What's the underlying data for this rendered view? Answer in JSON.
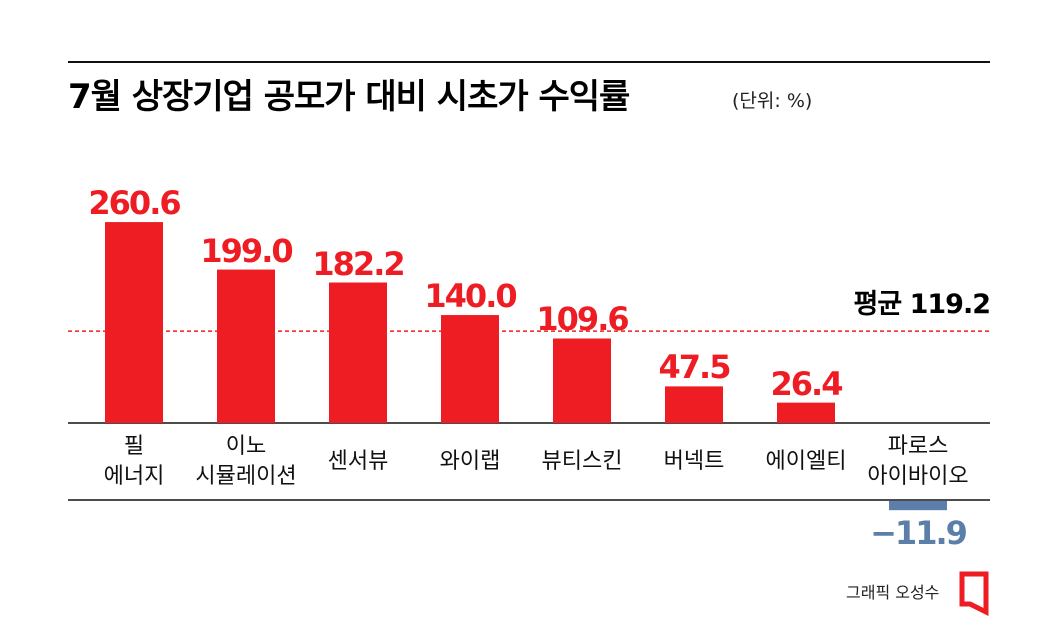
{
  "chart_data": {
    "type": "bar",
    "title": "7월 상장기업 공모가 대비 시초가 수익률",
    "subtitle": "(단위: %)",
    "categories": [
      "필\n에너지",
      "이노\n시뮬레이션",
      "센서뷰",
      "와이랩",
      "뷰티스킨",
      "버넥트",
      "에이엘티",
      "파로스\n아이바이오"
    ],
    "values": [
      260.6,
      199.0,
      182.2,
      140.0,
      109.6,
      47.5,
      26.4,
      -11.9
    ],
    "value_labels": [
      "260.6",
      "199.0",
      "182.2",
      "140.0",
      "109.6",
      "47.5",
      "26.4",
      "−11.9"
    ],
    "color": "#ee1c23",
    "negative_color": "#5b7fa8",
    "average": {
      "label": "평균",
      "value": 119.2
    },
    "credit": "그래픽 오성수"
  }
}
